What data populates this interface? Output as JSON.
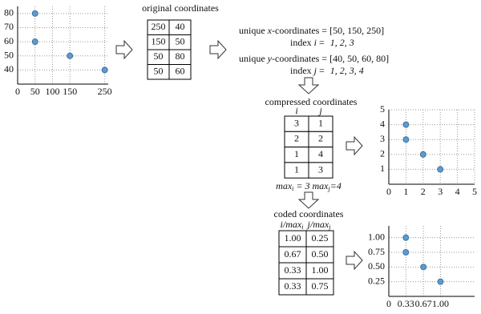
{
  "plots": [
    {
      "x": [
        50,
        50,
        150,
        250
      ],
      "y": [
        80,
        60,
        50,
        40
      ],
      "xlim": [
        0,
        260
      ],
      "ylim": [
        30,
        85
      ],
      "xticks": [
        0,
        50,
        100,
        150,
        250
      ],
      "yticks": [
        40,
        50,
        60,
        70,
        80
      ]
    },
    {
      "x": [
        1,
        1,
        2,
        3
      ],
      "y": [
        4,
        3,
        2,
        1
      ],
      "xlim": [
        0,
        5
      ],
      "ylim": [
        0,
        5
      ],
      "xticks": [
        0,
        1,
        2,
        3,
        4,
        5
      ],
      "yticks": [
        1,
        2,
        3,
        4,
        5
      ]
    },
    {
      "x": [
        0.33,
        0.33,
        0.67,
        1.0
      ],
      "y": [
        1.0,
        0.75,
        0.5,
        0.25
      ],
      "xlim": [
        0,
        1.66
      ],
      "ylim": [
        0,
        1.2
      ],
      "xticks": [
        0,
        0.33,
        0.67,
        {
          "value": 1,
          "label": "1.00"
        }
      ],
      "yticks": [
        0.25,
        {
          "value": 0.5,
          "label": "0.50"
        },
        0.75,
        {
          "value": 1,
          "label": "1.00"
        }
      ]
    }
  ],
  "original": {
    "title": "original coordinates",
    "rows": [
      [
        250,
        40
      ],
      [
        150,
        50
      ],
      [
        50,
        80
      ],
      [
        50,
        60
      ]
    ]
  },
  "unique_x": {
    "prefix": "unique",
    "var": "x",
    "suffix": "-coordinates = [50, 150, 250]"
  },
  "index_i": {
    "label": "index",
    "var": "i",
    "eq": "=",
    "values": "1,     2,     3"
  },
  "unique_y": {
    "prefix": "unique",
    "var": "y",
    "suffix": "-coordinates = [40, 50, 60, 80]"
  },
  "index_j": {
    "label": "index",
    "var": "j",
    "eq": "=",
    "values": "1,    2,   3,   4"
  },
  "compressed": {
    "title": "compressed coordinates",
    "headers": [
      "i",
      "j"
    ],
    "rows": [
      [
        3,
        1
      ],
      [
        2,
        2
      ],
      [
        1,
        4
      ],
      [
        1,
        3
      ]
    ]
  },
  "max": {
    "i_label": "max",
    "i_sub": "i",
    "i_eq": "= 3",
    "j_label": "max",
    "j_sub": "j",
    "j_eq": "=4"
  },
  "coded": {
    "title": "coded coordinates",
    "headers": [
      {
        "text": "i/max",
        "sub": "i"
      },
      {
        "text": "j/max",
        "sub": "j"
      }
    ],
    "rows": [
      [
        "1.00",
        "0.25"
      ],
      [
        "0.67",
        "0.50"
      ],
      [
        "0.33",
        "1.00"
      ],
      [
        "0.33",
        "0.75"
      ]
    ]
  }
}
